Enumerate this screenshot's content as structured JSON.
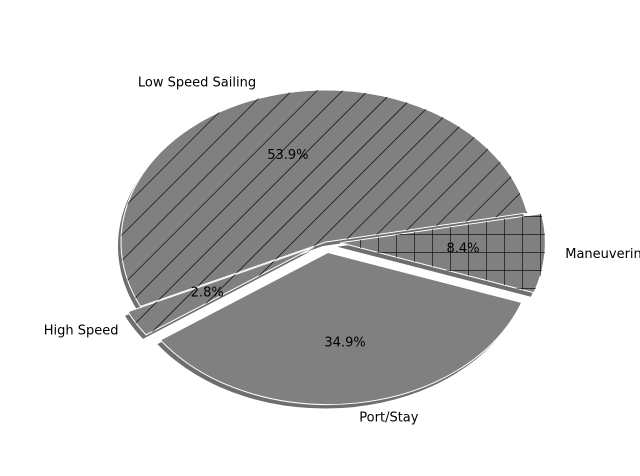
{
  "chart_data": {
    "type": "pie",
    "title": "",
    "categories": [
      "Low Speed Sailing",
      "High Speed",
      "Port/Stay",
      "Maneuvering"
    ],
    "values": [
      53.9,
      2.8,
      34.9,
      8.4
    ],
    "value_labels": [
      "53.9%",
      "2.8%",
      "34.9%",
      "8.4%"
    ],
    "exploded": [
      false,
      true,
      true,
      true
    ],
    "hatches": [
      "diagonal",
      "diagonal",
      "none",
      "crosshatch"
    ],
    "shadow": true,
    "legend": "none",
    "colors": {
      "wedge": "#808080",
      "hatch": "#000000",
      "edge": "#ffffff",
      "shadow": "#6e6e6e"
    }
  }
}
